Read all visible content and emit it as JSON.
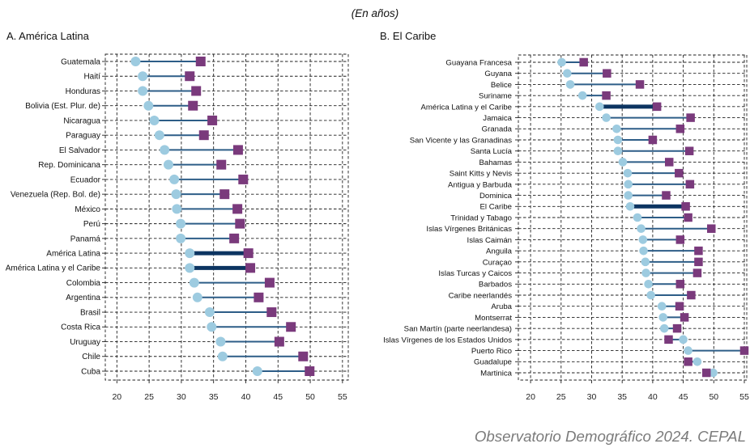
{
  "header": {
    "unit_note": "(En años)"
  },
  "chart_data": [
    {
      "type": "scatter",
      "title": "A. América Latina",
      "categories": [
        "Guatemala",
        "Haití",
        "Honduras",
        "Bolivia (Est. Plur. de)",
        "Nicaragua",
        "Paraguay",
        "El Salvador",
        "Rep. Dominicana",
        "Ecuador",
        "Venezuela (Rep. Bol. de)",
        "México",
        "Perú",
        "Panamá",
        "América Latina",
        "América Latina y el Caribe",
        "Colombia",
        "Argentina",
        "Brasil",
        "Costa Rica",
        "Uruguay",
        "Chile",
        "Cuba"
      ],
      "series": [
        {
          "marker": "circle",
          "color": "#9dcbe0",
          "values": [
            22.9,
            24.0,
            24.0,
            24.9,
            25.8,
            26.6,
            27.4,
            28.0,
            28.9,
            29.2,
            29.3,
            29.9,
            29.9,
            31.3,
            31.3,
            32.0,
            32.5,
            34.4,
            34.7,
            36.1,
            36.4,
            41.8
          ]
        },
        {
          "marker": "square",
          "color": "#7a3a7c",
          "values": [
            33.0,
            31.3,
            32.3,
            31.8,
            34.8,
            33.5,
            38.8,
            36.2,
            39.6,
            36.7,
            38.7,
            39.1,
            38.2,
            40.4,
            40.7,
            43.7,
            42.0,
            44.0,
            47.0,
            45.2,
            48.9,
            49.9
          ]
        }
      ],
      "emphasized_categories": [
        "América Latina",
        "América Latina y el Caribe"
      ],
      "colors": {
        "connector": "#2d5d87",
        "emphasized_connector": "#0c3461"
      },
      "xlim": [
        18.2,
        55.9
      ],
      "xticks": [
        20,
        25,
        30,
        35,
        40,
        45,
        50,
        55
      ],
      "grid": true
    },
    {
      "type": "scatter",
      "title": "B. El Caribe",
      "categories": [
        "Guayana Francesa",
        "Guyana",
        "Belice",
        "Suriname",
        "América Latina y el Caribe",
        "Jamaica",
        "Granada",
        "San Vicente y las Granadinas",
        "Santa Lucía",
        "Bahamas",
        "Saint Kitts y Nevis",
        "Antigua y Barbuda",
        "Dominica",
        "El Caribe",
        "Trinidad y Tabago",
        "Islas Vírgenes Británicas",
        "Islas Caimán",
        "Anguila",
        "Curaçao",
        "Islas Turcas y Caicos",
        "Barbados",
        "Caribe neerlandés",
        "Aruba",
        "Montserrat",
        "San Martín (parte neerlandesa)",
        "Islas Vírgenes de los Estados Unidos",
        "Puerto Rico",
        "Guadalupe",
        "Martinica"
      ],
      "series": [
        {
          "marker": "circle",
          "color": "#9dcbe0",
          "values": [
            25.1,
            26.0,
            26.5,
            28.5,
            31.3,
            32.4,
            34.1,
            34.3,
            34.3,
            35.1,
            35.9,
            36.0,
            36.0,
            36.3,
            37.5,
            38.1,
            38.4,
            38.5,
            38.8,
            38.9,
            39.3,
            39.7,
            41.5,
            41.7,
            41.9,
            45.0,
            45.8,
            47.3,
            49.9
          ]
        },
        {
          "marker": "square",
          "color": "#7a3a7c",
          "values": [
            28.7,
            32.5,
            37.9,
            32.4,
            40.7,
            46.2,
            44.5,
            40.0,
            46.0,
            42.7,
            44.3,
            46.1,
            42.2,
            45.4,
            45.8,
            49.6,
            44.5,
            47.5,
            47.5,
            47.3,
            44.5,
            46.3,
            44.4,
            45.2,
            44.0,
            42.6,
            55.0,
            45.8,
            48.8
          ]
        }
      ],
      "emphasized_categories": [
        "América Latina y el Caribe",
        "El Caribe"
      ],
      "colors": {
        "connector": "#2d5d87",
        "emphasized_connector": "#0c3461"
      },
      "xlim": [
        18.0,
        55.4
      ],
      "xticks": [
        20,
        25,
        30,
        35,
        40,
        45,
        50,
        55
      ],
      "grid": true
    }
  ],
  "footer": {
    "source": "Observatorio Demográfico 2024. CEPAL"
  }
}
